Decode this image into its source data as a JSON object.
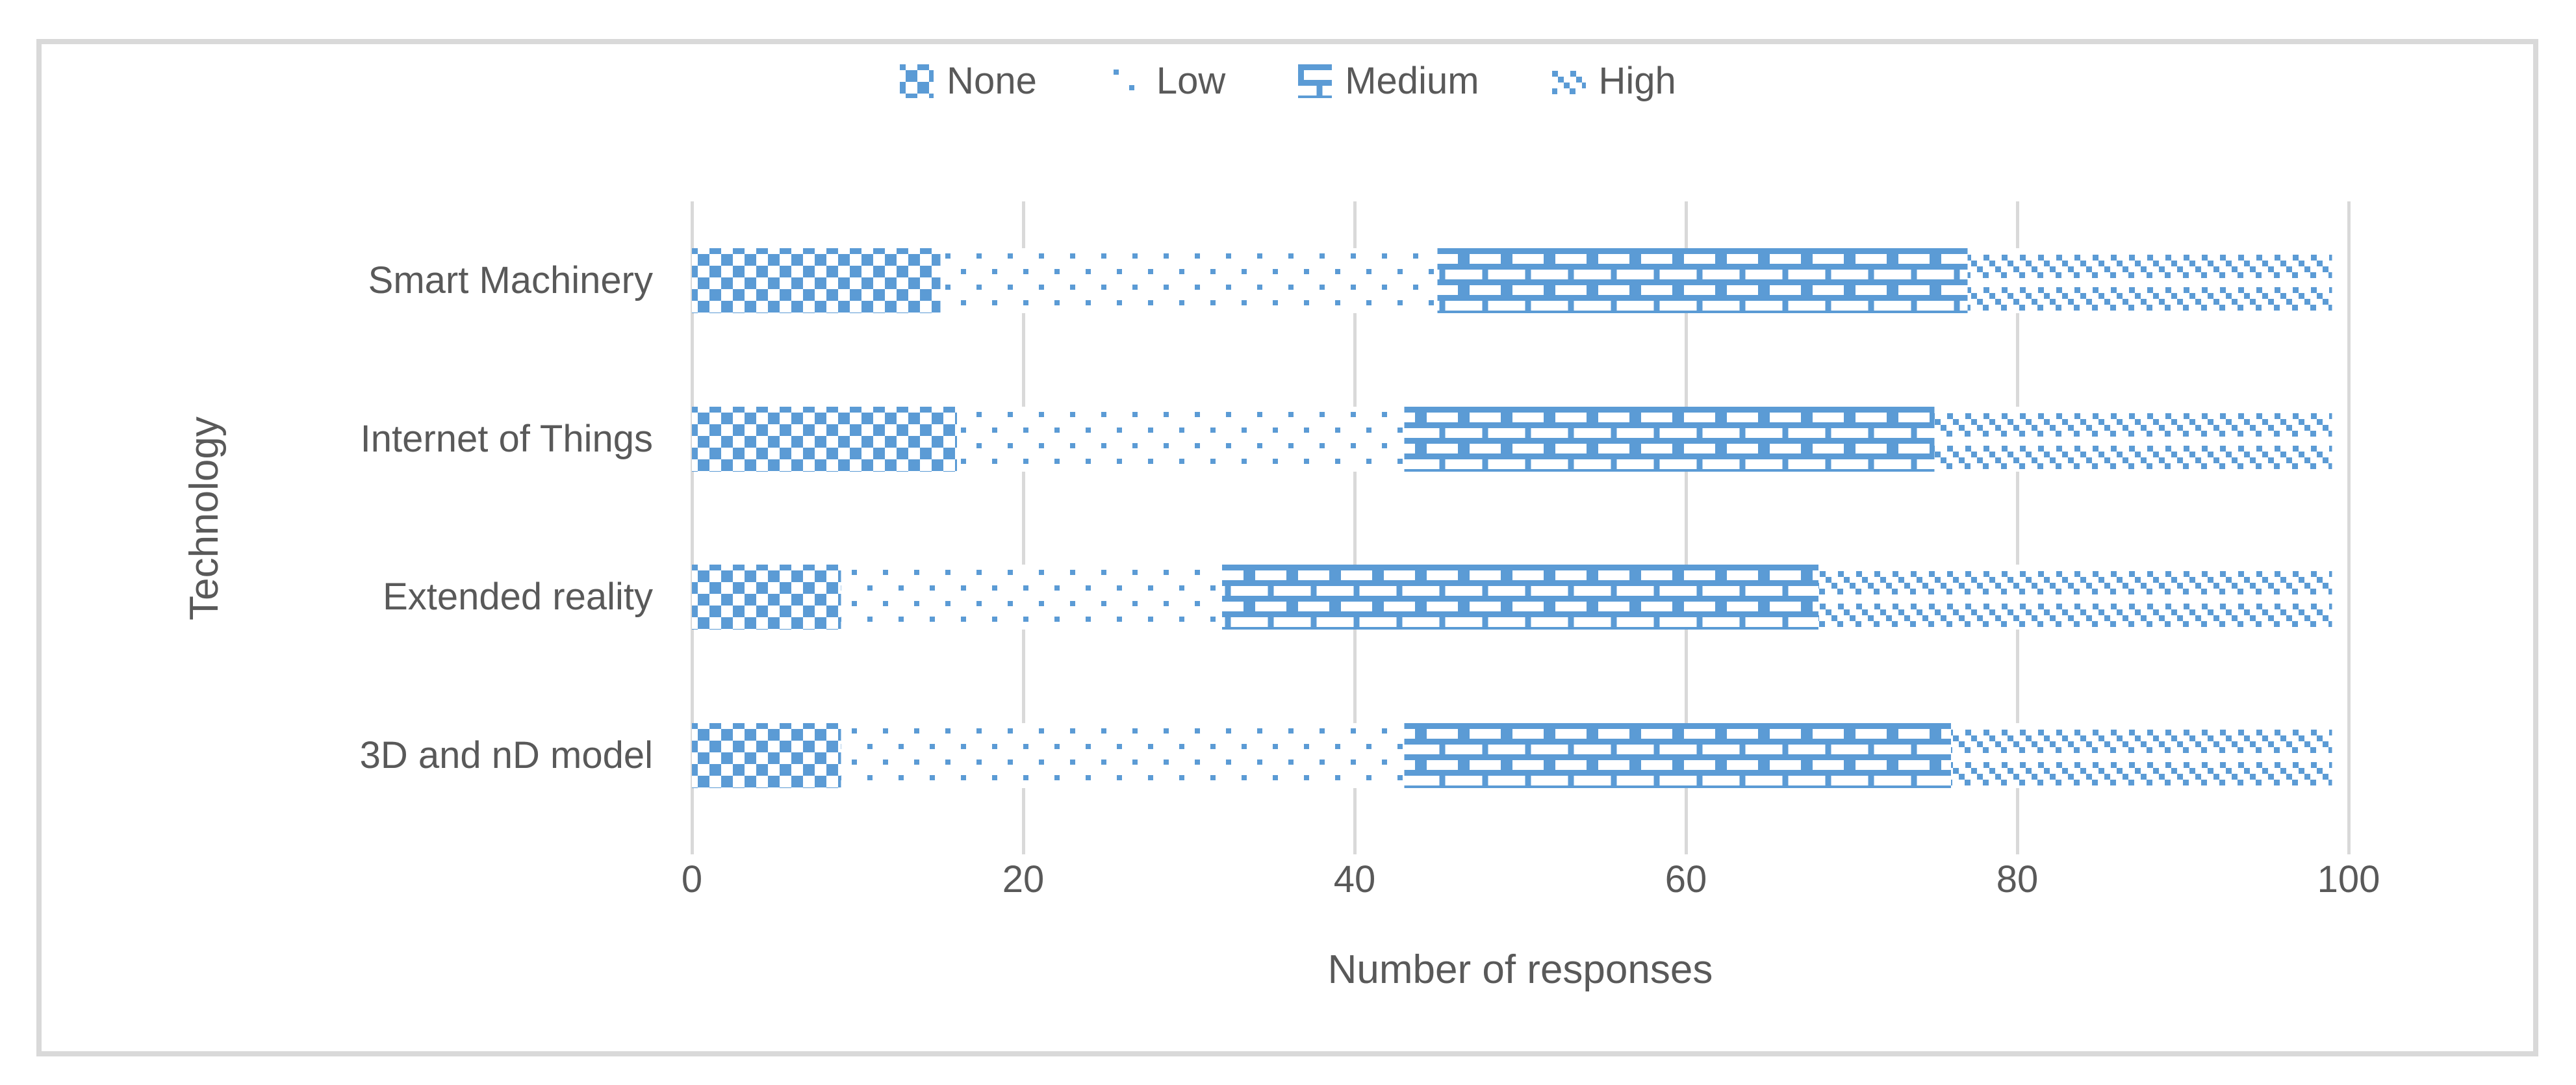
{
  "chart_data": {
    "type": "bar",
    "orientation": "horizontal",
    "stacked": true,
    "title": "",
    "xlabel": "Number of responses",
    "ylabel": "Technology",
    "categories": [
      "Smart Machinery",
      "Internet of Things",
      "Extended reality",
      "3D and nD model"
    ],
    "series": [
      {
        "name": "None",
        "pattern": "crosshatch-pattern",
        "values": [
          15,
          16,
          9,
          9
        ]
      },
      {
        "name": "Low",
        "pattern": "dots-pattern",
        "values": [
          30,
          27,
          23,
          34
        ]
      },
      {
        "name": "Medium",
        "pattern": "bricks-pattern",
        "values": [
          32,
          32,
          36,
          33
        ]
      },
      {
        "name": "High",
        "pattern": "diagonal-pattern",
        "values": [
          22,
          24,
          31,
          23
        ]
      }
    ],
    "totals": [
      99,
      99,
      99,
      99
    ],
    "xlim": [
      0,
      100
    ],
    "xticks": [
      0,
      20,
      40,
      60,
      80,
      100
    ],
    "grid": true,
    "legend_position": "top-center",
    "colors": {
      "bar": "#5B9BD5",
      "text": "#595959",
      "gridline": "#D9D9D9",
      "border": "#D9D9D9",
      "background": "#FFFFFF"
    }
  }
}
